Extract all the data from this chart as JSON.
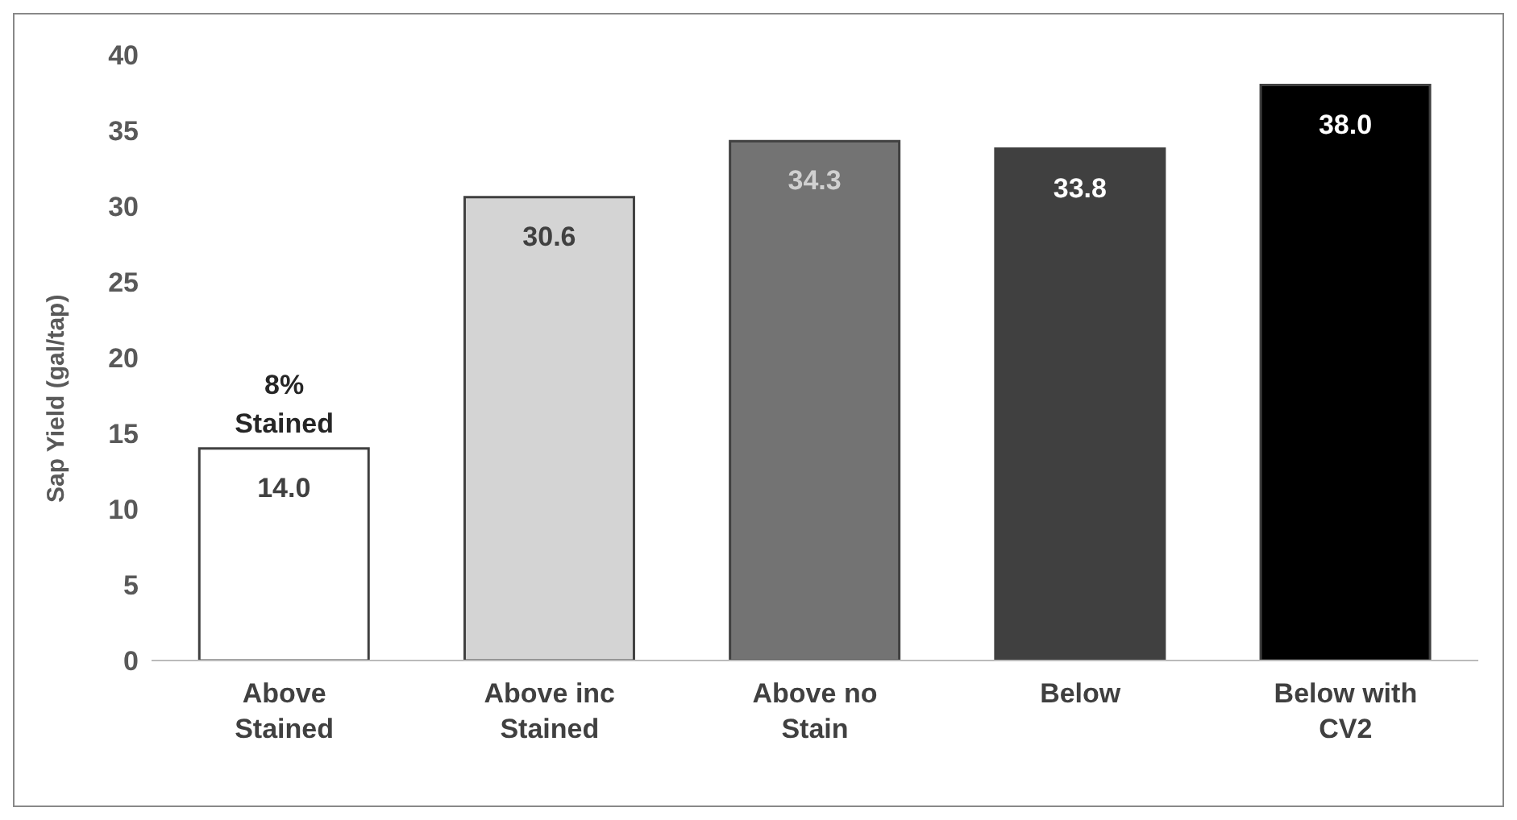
{
  "chart_data": {
    "type": "bar",
    "ylabel": "Sap Yield (gal/tap)",
    "categories": [
      "Above Stained",
      "Above inc Stained",
      "Above no Stain",
      "Below",
      "Below with CV2"
    ],
    "values": [
      14.0,
      30.6,
      34.3,
      33.8,
      38.0
    ],
    "colors": [
      "#ffffff",
      "#d4d4d4",
      "#737373",
      "#404040",
      "#000000"
    ],
    "value_labels": [
      "14.0",
      "30.6",
      "34.3",
      "33.8",
      "38.0"
    ],
    "ylim": [
      0,
      40
    ],
    "yticks": [
      0,
      5,
      10,
      15,
      20,
      25,
      30,
      35,
      40
    ],
    "grid": false,
    "annotations": [
      {
        "text": "8% Stained",
        "x": "Above Stained",
        "y": 14.0
      }
    ]
  }
}
